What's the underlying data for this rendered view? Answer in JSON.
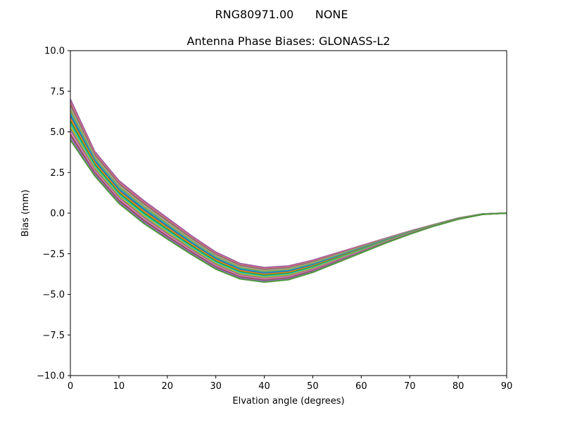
{
  "chart_data": {
    "type": "line",
    "suptitle": "RNG80971.00      NONE",
    "title": "Antenna Phase Biases: GLONASS-L2",
    "xlabel": "Elvation angle (degrees)",
    "ylabel": "Bias (mm)",
    "xlim": [
      0,
      90
    ],
    "ylim": [
      -10,
      10
    ],
    "xticks": [
      0,
      10,
      20,
      30,
      40,
      50,
      60,
      70,
      80,
      90
    ],
    "yticks": [
      -10.0,
      -7.5,
      -5.0,
      -2.5,
      0.0,
      2.5,
      5.0,
      7.5,
      10.0
    ],
    "ytick_labels": [
      "−10.0",
      "−7.5",
      "−5.0",
      "−2.5",
      "0.0",
      "2.5",
      "5.0",
      "7.5",
      "10.0"
    ],
    "x": [
      0,
      5,
      10,
      15,
      20,
      25,
      30,
      35,
      40,
      45,
      50,
      55,
      60,
      65,
      70,
      75,
      80,
      85,
      90
    ],
    "envelope": {
      "upper": [
        7.0,
        3.8,
        2.0,
        0.8,
        -0.3,
        -1.4,
        -2.4,
        -3.1,
        -3.35,
        -3.25,
        -2.9,
        -2.45,
        -2.0,
        -1.55,
        -1.1,
        -0.7,
        -0.3,
        -0.05,
        0.0
      ],
      "lower": [
        4.5,
        2.3,
        0.6,
        -0.6,
        -1.6,
        -2.55,
        -3.45,
        -4.05,
        -4.25,
        -4.1,
        -3.65,
        -3.05,
        -2.45,
        -1.85,
        -1.3,
        -0.8,
        -0.38,
        -0.08,
        0.0
      ]
    },
    "series_count": 16,
    "series_colors": [
      "#9b5fa0",
      "#d46b8f",
      "#8c6d5a",
      "#a0a0a0",
      "#9aa83b",
      "#2fa6b5",
      "#1f77b4",
      "#ff7f0e",
      "#2ca02c",
      "#17becf",
      "#bcbd22",
      "#7f7f7f",
      "#e377c2",
      "#8c564b",
      "#9467bd",
      "#4e9a3a"
    ],
    "grid": false,
    "legend": "none"
  }
}
